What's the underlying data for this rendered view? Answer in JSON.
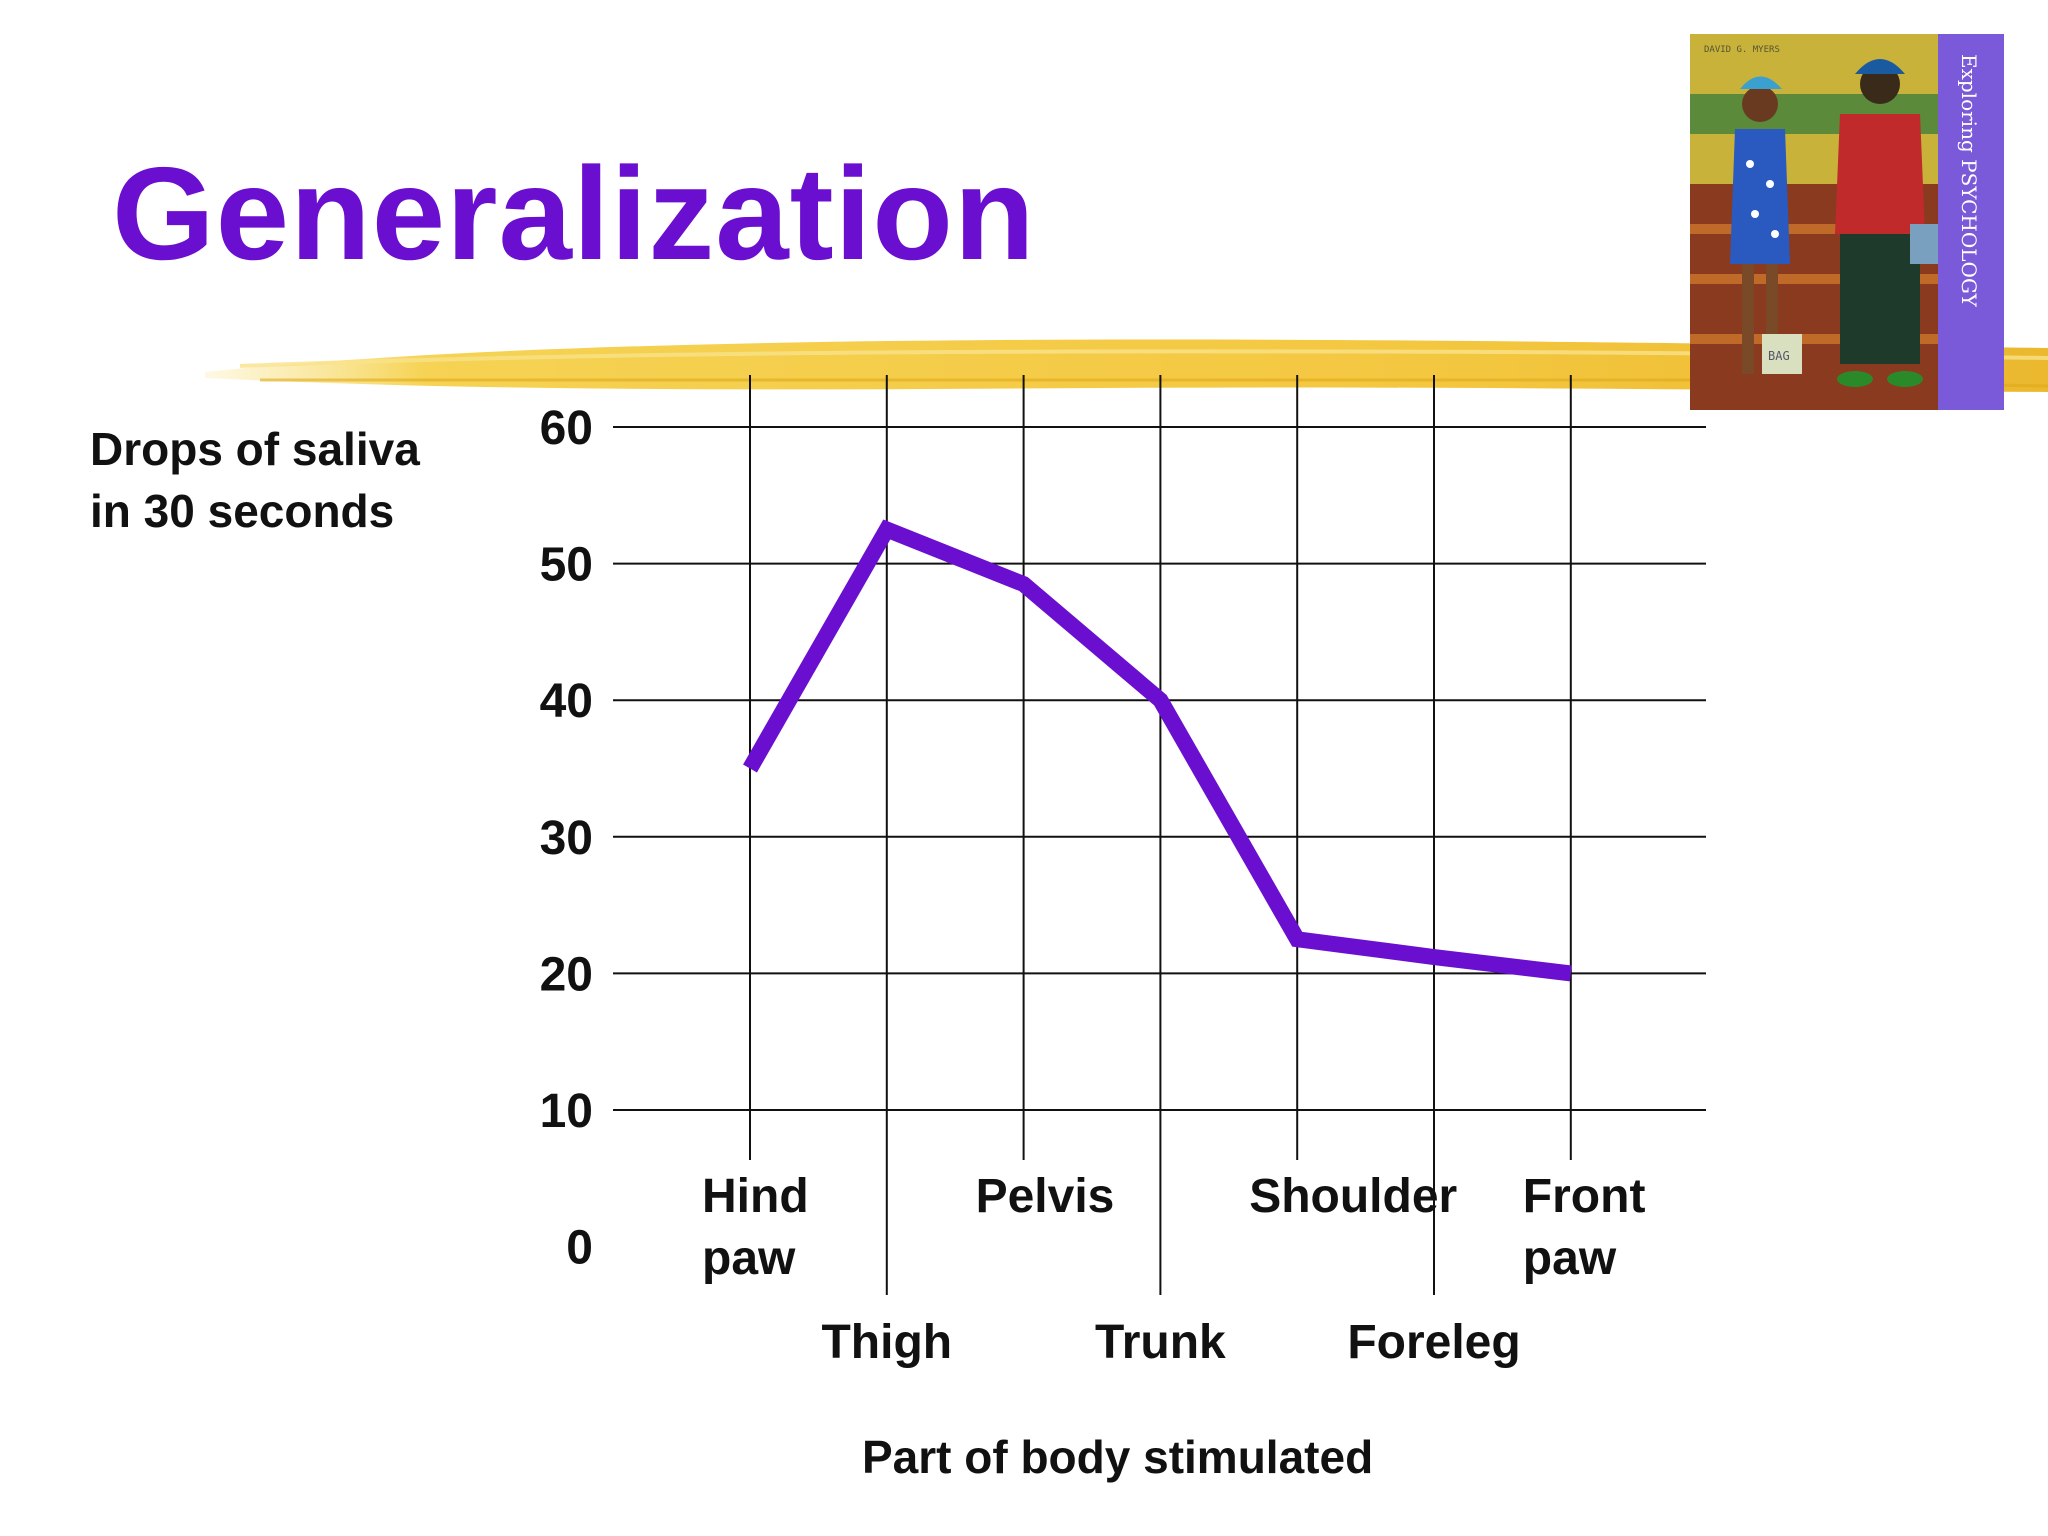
{
  "slide": {
    "title": "Generalization"
  },
  "colors": {
    "title": "#6a0fd0",
    "line": "#6a0fd0",
    "brush": "#f2c12e",
    "grid": "#111111"
  },
  "chart_data": {
    "type": "line",
    "title": "",
    "ylabel_lines": [
      "Drops of saliva",
      "in 30 seconds"
    ],
    "xlabel": "Part of body stimulated",
    "ylim": [
      0,
      60
    ],
    "yticks": [
      0,
      10,
      20,
      30,
      40,
      50,
      60
    ],
    "categories": [
      {
        "lines": [
          "Hind",
          "paw"
        ],
        "row": "upper"
      },
      {
        "lines": [
          "Thigh"
        ],
        "row": "lower"
      },
      {
        "lines": [
          "Pelvis"
        ],
        "row": "upper"
      },
      {
        "lines": [
          "Trunk"
        ],
        "row": "lower"
      },
      {
        "lines": [
          "Shoulder"
        ],
        "row": "upper"
      },
      {
        "lines": [
          "Foreleg"
        ],
        "row": "lower"
      },
      {
        "lines": [
          "Front",
          "paw"
        ],
        "row": "upper"
      }
    ],
    "values": [
      35,
      52.5,
      48.5,
      40,
      22.5,
      21.2,
      20
    ],
    "grid": true,
    "legend": "none"
  },
  "cover": {
    "icon": "book-cover-image",
    "spine_text": "Exploring PSYCHOLOGY",
    "author_text": "DAVID G. MYERS",
    "bag_text": "BAG"
  }
}
